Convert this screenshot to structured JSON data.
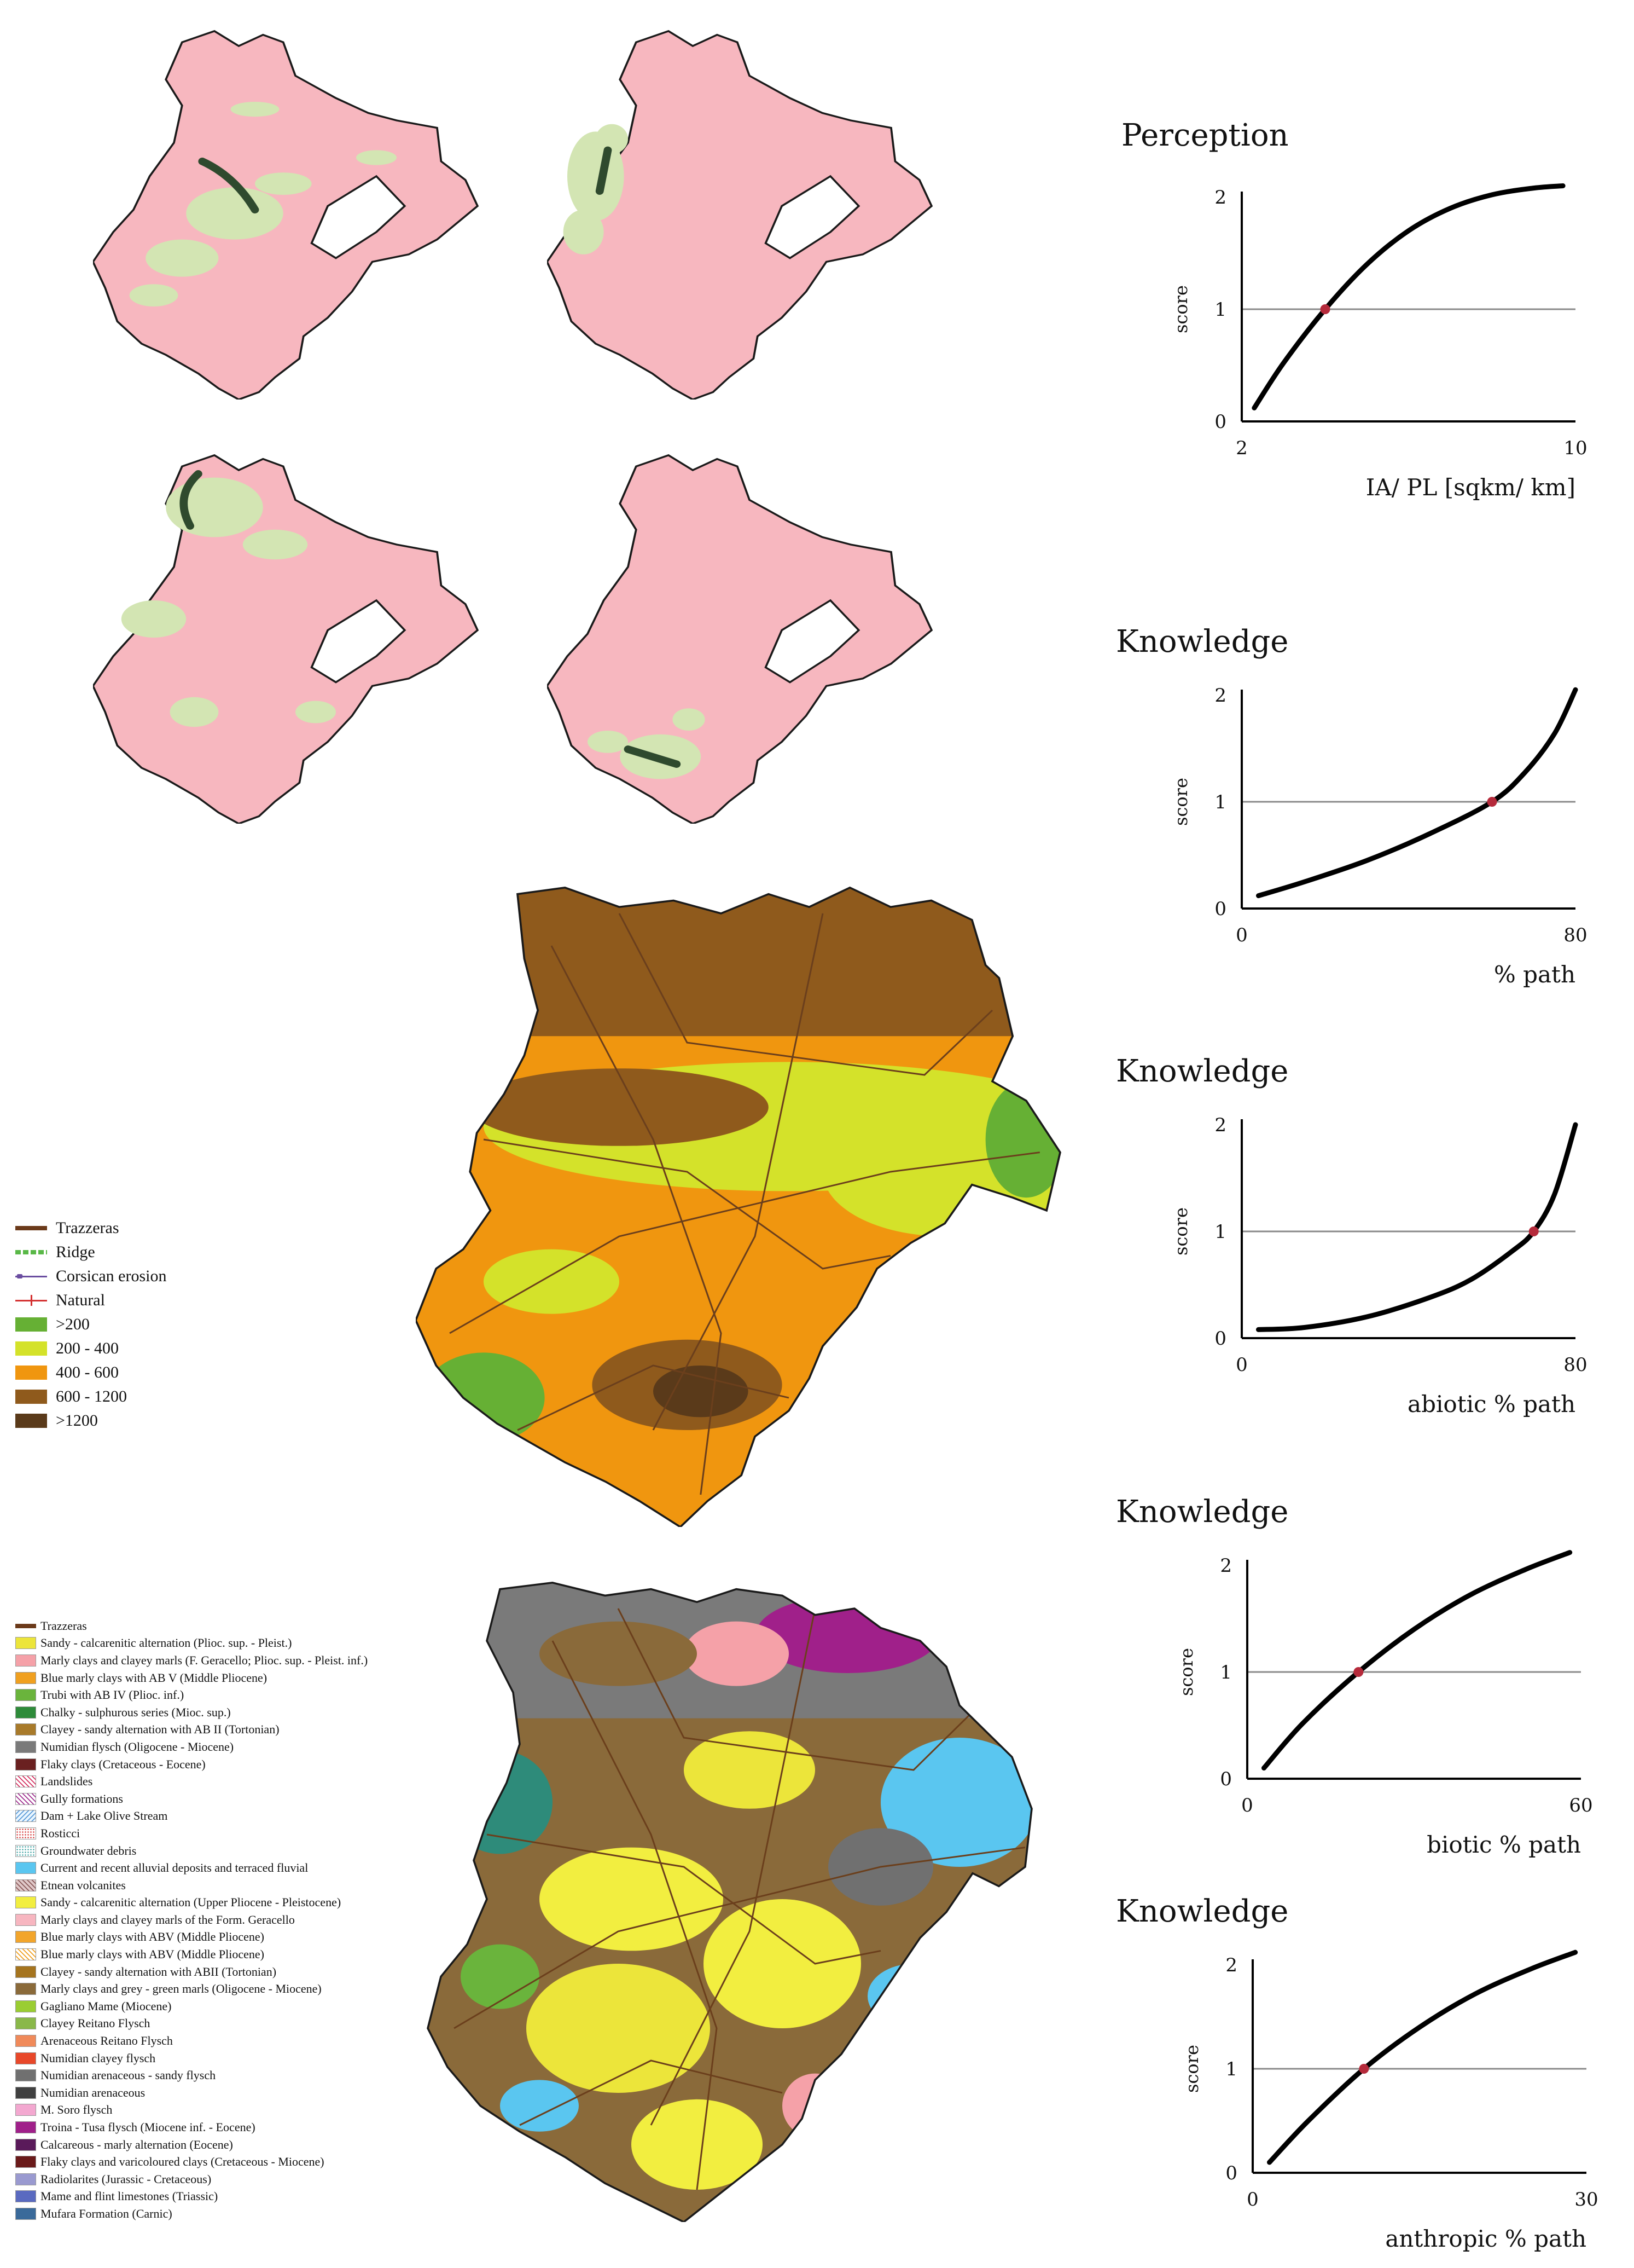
{
  "colors": {
    "map_pink": "#f7b7bf",
    "map_green": "#d3e5b3",
    "path_dark": "#2f4a2e",
    "map_outline": "#1a1a1a",
    "curve": "#000000",
    "ref_line": "#8a8a8a",
    "marker": "#b52a3b",
    "road": "#6b3f1c"
  },
  "elevation_legend": {
    "items": [
      {
        "label": "Trazzeras",
        "color": "#6b3a1a",
        "kind": "line"
      },
      {
        "label": "Ridge",
        "color": "#59b847",
        "kind": "double-dash"
      },
      {
        "label": "Corsican erosion",
        "color": "#6a4da0",
        "kind": "dot-line"
      },
      {
        "label": "Natural",
        "color": "#d43030",
        "kind": "cross-line"
      },
      {
        "label": ">200",
        "color": "#66b034",
        "kind": "box"
      },
      {
        "label": "200 - 400",
        "color": "#d4e22a",
        "kind": "box"
      },
      {
        "label": "400 - 600",
        "color": "#f0960f",
        "kind": "box"
      },
      {
        "label": "600 - 1200",
        "color": "#8f5a1c",
        "kind": "box"
      },
      {
        "label": ">1200",
        "color": "#5a3a1a",
        "kind": "box"
      }
    ]
  },
  "geology_legend": {
    "items": [
      {
        "label": "Trazzeras",
        "color": "#6b3a1a",
        "kind": "line"
      },
      {
        "label": "Sandy - calcarenitic alternation (Plioc. sup. - Pleist.)",
        "color": "#ece53a",
        "kind": "box"
      },
      {
        "label": "Marly clays and clayey marls (F. Geracello; Plioc. sup. - Pleist. inf.)",
        "color": "#f5a1a8",
        "kind": "box"
      },
      {
        "label": "Blue marly clays with AB V (Middle Pliocene)",
        "color": "#f0a020",
        "kind": "box"
      },
      {
        "label": "Trubi with AB IV (Plioc. inf.)",
        "color": "#6ab43c",
        "kind": "box"
      },
      {
        "label": "Chalky - sulphurous series (Mioc. sup.)",
        "color": "#2e8b3a",
        "kind": "box"
      },
      {
        "label": "Clayey - sandy alternation with AB II (Tortonian)",
        "color": "#a87a2a",
        "kind": "box"
      },
      {
        "label": "Numidian flysch (Oligocene - Miocene)",
        "color": "#7a7a7a",
        "kind": "box"
      },
      {
        "label": "Flaky clays (Cretaceous - Eocene)",
        "color": "#6a2020",
        "kind": "box"
      },
      {
        "label": "Landslides",
        "color": "#ffffff",
        "kind": "hatch-red"
      },
      {
        "label": "Gully formations",
        "color": "#ffffff",
        "kind": "hatch-purple"
      },
      {
        "label": "Dam + Lake Olive Stream",
        "color": "#ffffff",
        "kind": "hatch-blue"
      },
      {
        "label": "Rosticci",
        "color": "#ffffff",
        "kind": "dots-red"
      },
      {
        "label": "Groundwater debris",
        "color": "#ffffff",
        "kind": "dots-teal"
      },
      {
        "label": "Current and recent alluvial deposits and terraced fluvial",
        "color": "#5ac6f0",
        "kind": "box"
      },
      {
        "label": "Etnean volcanites",
        "color": "#b08080",
        "kind": "hatch-brown"
      },
      {
        "label": "Sandy - calcarenitic alternation (Upper Pliocene - Pleistocene)",
        "color": "#f2ee40",
        "kind": "box"
      },
      {
        "label": "Marly clays and clayey marls of the Form. Geracello",
        "color": "#f7b6c0",
        "kind": "box"
      },
      {
        "label": "Blue marly clays with ABV (Middle Pliocene)",
        "color": "#f2a52c",
        "kind": "box"
      },
      {
        "label": "Blue marly clays with ABV (Middle Pliocene)",
        "color": "#ffffff",
        "kind": "hatch-orange"
      },
      {
        "label": "Clayey - sandy alternation with ABII (Tortonian)",
        "color": "#a5741e",
        "kind": "box"
      },
      {
        "label": "Marly clays and grey - green marls (Oligocene - Miocene)",
        "color": "#8a6a3a",
        "kind": "box"
      },
      {
        "label": "Gagliano Mame (Miocene)",
        "color": "#9acd32",
        "kind": "box"
      },
      {
        "label": "Clayey Reitano Flysch",
        "color": "#8ab84a",
        "kind": "box"
      },
      {
        "label": "Arenaceous Reitano Flysch",
        "color": "#f08a5a",
        "kind": "box"
      },
      {
        "label": "Numidian clayey flysch",
        "color": "#e8482a",
        "kind": "box"
      },
      {
        "label": "Numidian arenaceous - sandy flysch",
        "color": "#707070",
        "kind": "box"
      },
      {
        "label": "Numidian arenaceous",
        "color": "#404040",
        "kind": "box"
      },
      {
        "label": "M. Soro flysch",
        "color": "#f3a8d0",
        "kind": "box"
      },
      {
        "label": "Troina - Tusa flysch (Miocene inf. - Eocene)",
        "color": "#a0208a",
        "kind": "box"
      },
      {
        "label": "Calcareous - marly alternation (Eocene)",
        "color": "#5a1a5a",
        "kind": "box"
      },
      {
        "label": "Flaky clays and varicoloured clays (Cretaceous - Miocene)",
        "color": "#6a1a1a",
        "kind": "box"
      },
      {
        "label": "Radiolarites (Jurassic - Cretaceous)",
        "color": "#9a9ad0",
        "kind": "box"
      },
      {
        "label": "Mame and flint limestones (Triassic)",
        "color": "#5a6ac0",
        "kind": "box"
      },
      {
        "label": "Mufara Formation (Carnic)",
        "color": "#3a6a9a",
        "kind": "box"
      }
    ]
  },
  "chart_data": [
    {
      "type": "line",
      "title": "Perception",
      "xlabel": "IA/ PL [sqkm/ km]",
      "ylabel": "score",
      "xlim": [
        2,
        10
      ],
      "ylim": [
        0,
        2
      ],
      "xticks": [
        2,
        10
      ],
      "yticks": [
        0,
        1,
        2
      ],
      "reference_y": 1,
      "series": [
        {
          "x": [
            2.3,
            3.0,
            4.0,
            5.0,
            6.0,
            7.0,
            8.0,
            9.0,
            9.7
          ],
          "y": [
            0.12,
            0.52,
            1.0,
            1.4,
            1.7,
            1.9,
            2.02,
            2.08,
            2.1
          ]
        }
      ],
      "marker": {
        "x": 4.0,
        "y": 1.0
      }
    },
    {
      "type": "line",
      "title": "Knowledge",
      "xlabel": "% path",
      "ylabel": "score",
      "xlim": [
        0,
        80
      ],
      "ylim": [
        0,
        2
      ],
      "xticks": [
        0,
        80
      ],
      "yticks": [
        0,
        1,
        2
      ],
      "reference_y": 1,
      "series": [
        {
          "x": [
            4,
            15,
            30,
            45,
            60,
            68,
            75,
            80
          ],
          "y": [
            0.12,
            0.25,
            0.45,
            0.7,
            1.0,
            1.28,
            1.64,
            2.05
          ]
        }
      ],
      "marker": {
        "x": 60,
        "y": 1.0
      }
    },
    {
      "type": "line",
      "title": "Knowledge",
      "xlabel": "abiotic % path",
      "ylabel": "score",
      "xlim": [
        0,
        80
      ],
      "ylim": [
        0,
        2
      ],
      "xticks": [
        0,
        80
      ],
      "yticks": [
        0,
        1,
        2
      ],
      "reference_y": 1,
      "series": [
        {
          "x": [
            4,
            15,
            30,
            45,
            55,
            65,
            70,
            75,
            80
          ],
          "y": [
            0.08,
            0.1,
            0.2,
            0.38,
            0.55,
            0.82,
            1.0,
            1.35,
            2.0
          ]
        }
      ],
      "marker": {
        "x": 70,
        "y": 1.0
      }
    },
    {
      "type": "line",
      "title": "Knowledge",
      "xlabel": "biotic % path",
      "ylabel": "score",
      "xlim": [
        0,
        60
      ],
      "ylim": [
        0,
        2
      ],
      "xticks": [
        0,
        60
      ],
      "yticks": [
        0,
        1,
        2
      ],
      "reference_y": 1,
      "series": [
        {
          "x": [
            3,
            10,
            20,
            30,
            40,
            50,
            58
          ],
          "y": [
            0.1,
            0.52,
            1.0,
            1.4,
            1.72,
            1.96,
            2.12
          ]
        }
      ],
      "marker": {
        "x": 20,
        "y": 1.0
      }
    },
    {
      "type": "line",
      "title": "Knowledge",
      "xlabel": "anthropic % path",
      "ylabel": "score",
      "xlim": [
        0,
        30
      ],
      "ylim": [
        0,
        2
      ],
      "xticks": [
        0,
        30
      ],
      "yticks": [
        0,
        1,
        2
      ],
      "reference_y": 1,
      "series": [
        {
          "x": [
            1.5,
            5,
            10,
            15,
            20,
            25,
            29
          ],
          "y": [
            0.1,
            0.5,
            1.0,
            1.4,
            1.72,
            1.96,
            2.12
          ]
        }
      ],
      "marker": {
        "x": 10,
        "y": 1.0
      }
    }
  ]
}
